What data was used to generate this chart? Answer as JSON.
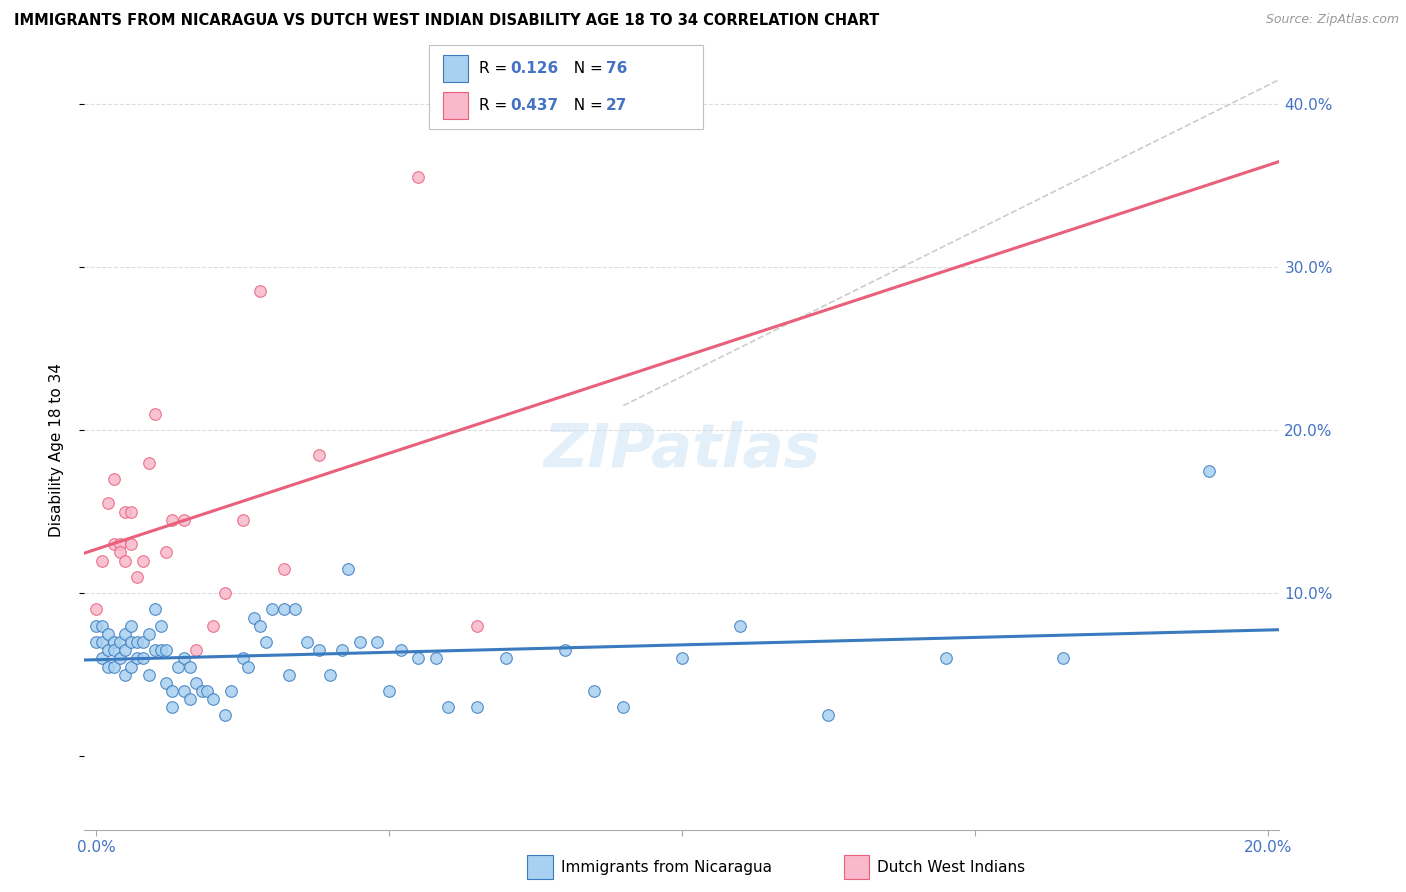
{
  "title": "IMMIGRANTS FROM NICARAGUA VS DUTCH WEST INDIAN DISABILITY AGE 18 TO 34 CORRELATION CHART",
  "source": "Source: ZipAtlas.com",
  "ylabel": "Disability Age 18 to 34",
  "xlim": [
    -0.002,
    0.202
  ],
  "ylim": [
    -0.045,
    0.42
  ],
  "blue_color": "#a8d1f0",
  "pink_color": "#f9b8cc",
  "line_blue": "#3a7abf",
  "line_pink": "#e8607a",
  "line_dashed_color": "#cccccc",
  "tick_color": "#4472c4",
  "watermark": "ZIPatlas",
  "r1": "0.126",
  "n1": "76",
  "r2": "0.437",
  "n2": "27",
  "blue_scatter_x": [
    0.0,
    0.0,
    0.001,
    0.001,
    0.001,
    0.002,
    0.002,
    0.002,
    0.003,
    0.003,
    0.003,
    0.004,
    0.004,
    0.005,
    0.005,
    0.005,
    0.006,
    0.006,
    0.006,
    0.007,
    0.007,
    0.008,
    0.008,
    0.009,
    0.009,
    0.01,
    0.01,
    0.011,
    0.011,
    0.012,
    0.012,
    0.013,
    0.013,
    0.014,
    0.015,
    0.015,
    0.016,
    0.016,
    0.017,
    0.018,
    0.019,
    0.02,
    0.022,
    0.023,
    0.025,
    0.026,
    0.027,
    0.028,
    0.029,
    0.03,
    0.032,
    0.033,
    0.034,
    0.036,
    0.038,
    0.04,
    0.042,
    0.043,
    0.045,
    0.048,
    0.05,
    0.052,
    0.055,
    0.058,
    0.06,
    0.065,
    0.07,
    0.08,
    0.085,
    0.09,
    0.1,
    0.11,
    0.125,
    0.145,
    0.165,
    0.19
  ],
  "blue_scatter_y": [
    0.08,
    0.07,
    0.08,
    0.07,
    0.06,
    0.075,
    0.065,
    0.055,
    0.07,
    0.065,
    0.055,
    0.07,
    0.06,
    0.075,
    0.065,
    0.05,
    0.08,
    0.07,
    0.055,
    0.07,
    0.06,
    0.07,
    0.06,
    0.075,
    0.05,
    0.09,
    0.065,
    0.08,
    0.065,
    0.065,
    0.045,
    0.04,
    0.03,
    0.055,
    0.06,
    0.04,
    0.055,
    0.035,
    0.045,
    0.04,
    0.04,
    0.035,
    0.025,
    0.04,
    0.06,
    0.055,
    0.085,
    0.08,
    0.07,
    0.09,
    0.09,
    0.05,
    0.09,
    0.07,
    0.065,
    0.05,
    0.065,
    0.115,
    0.07,
    0.07,
    0.04,
    0.065,
    0.06,
    0.06,
    0.03,
    0.03,
    0.06,
    0.065,
    0.04,
    0.03,
    0.06,
    0.08,
    0.025,
    0.06,
    0.06,
    0.175
  ],
  "pink_scatter_x": [
    0.0,
    0.001,
    0.002,
    0.003,
    0.003,
    0.004,
    0.004,
    0.005,
    0.005,
    0.006,
    0.006,
    0.007,
    0.008,
    0.009,
    0.01,
    0.012,
    0.013,
    0.015,
    0.017,
    0.02,
    0.022,
    0.025,
    0.028,
    0.032,
    0.038,
    0.055,
    0.065
  ],
  "pink_scatter_y": [
    0.09,
    0.12,
    0.155,
    0.13,
    0.17,
    0.13,
    0.125,
    0.15,
    0.12,
    0.15,
    0.13,
    0.11,
    0.12,
    0.18,
    0.21,
    0.125,
    0.145,
    0.145,
    0.065,
    0.08,
    0.1,
    0.145,
    0.285,
    0.115,
    0.185,
    0.355,
    0.08
  ]
}
